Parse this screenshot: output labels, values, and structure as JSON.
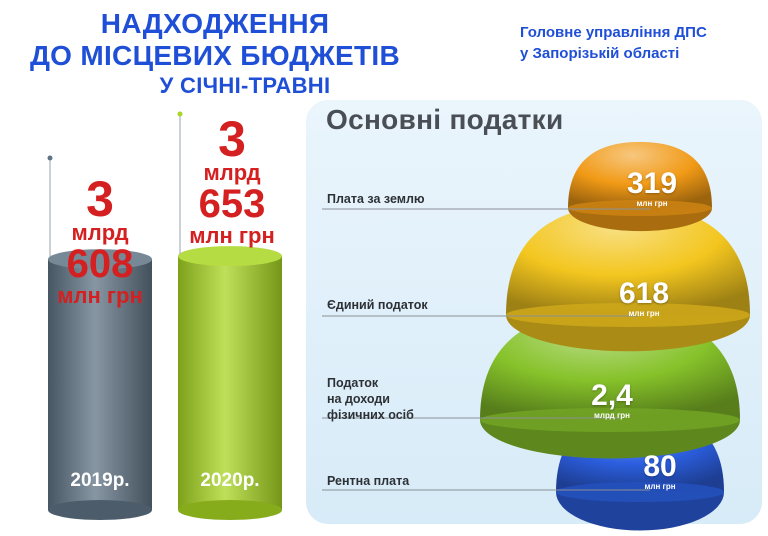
{
  "header": {
    "title_line1": "НАДХОДЖЕННЯ",
    "title_line2": "ДО МІСЦЕВИХ БЮДЖЕТІВ",
    "title_line3": "У СІЧНІ-ТРАВНІ",
    "agency_line1": "Головне управління ДПС",
    "agency_line2": "у Запорізькій області"
  },
  "colors": {
    "title_blue": "#1f4fd6",
    "value_red": "#d42020",
    "bar_2019": "#5f7384",
    "bar_2020": "#a8d622",
    "tax_land": "#f19a16",
    "tax_single": "#f3c61f",
    "tax_pit": "#86c22a",
    "tax_rent": "#2c5fe0"
  },
  "chart_data": [
    {
      "type": "bar",
      "categories": [
        "2019р.",
        "2020р."
      ],
      "values_mln_uah": [
        3608,
        3653
      ],
      "totals": [
        {
          "line1": "3",
          "line2": "млрд",
          "line3": "608",
          "line4": "млн грн"
        },
        {
          "line1": "3",
          "line2": "млрд",
          "line3": "653",
          "line4": "млн грн"
        }
      ]
    },
    {
      "type": "pie",
      "title": "Основні податки",
      "items": [
        {
          "label": "Плата за землю",
          "value": "319",
          "unit": "млн грн"
        },
        {
          "label": "Єдиний податок",
          "value": "618",
          "unit": "млн грн"
        },
        {
          "label_lines": [
            "Податок",
            "на доходи",
            "фізичних осіб"
          ],
          "value": "2,4",
          "unit": "млрд грн"
        },
        {
          "label": "Рентна плата",
          "value": "80",
          "unit": "млн грн"
        }
      ],
      "values_mln_uah": [
        319,
        618,
        2400,
        80
      ]
    }
  ]
}
